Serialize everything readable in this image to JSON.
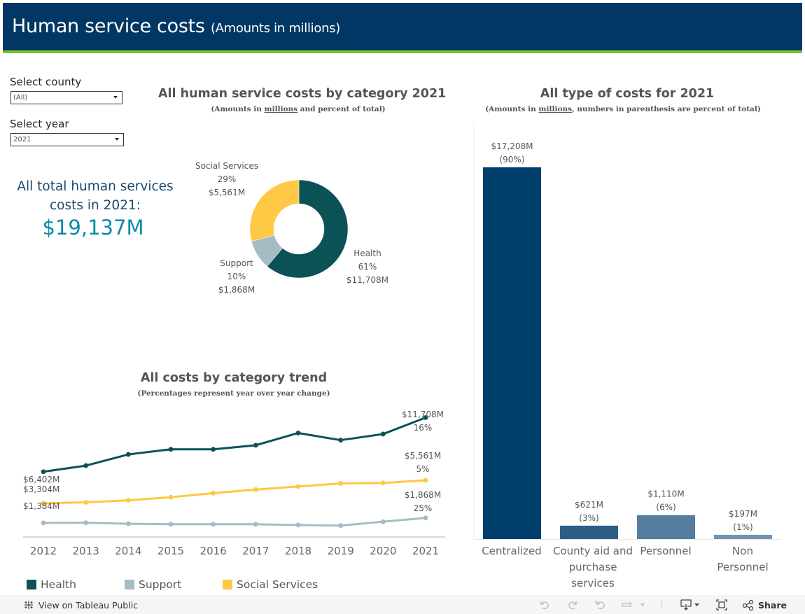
{
  "header": {
    "title": "Human service costs",
    "subtitle": "(Amounts in millions)",
    "bg_color": "#003764",
    "accent_color": "#7bc12a"
  },
  "filters": {
    "county": {
      "label": "Select county",
      "value": "(All)"
    },
    "year": {
      "label": "Select year",
      "value": "2021"
    }
  },
  "kpi": {
    "label": "All total human services costs in 2021:",
    "value": "$19,137M"
  },
  "donut_section": {
    "title": "All human service costs by category 2021",
    "subtitle_pre": "(Amounts in ",
    "subtitle_u": "millions",
    "subtitle_post": " and percent of total)"
  },
  "trend_section": {
    "title": "All costs by category trend",
    "subtitle": "(Percentages represent year over year change)"
  },
  "bar_section": {
    "title": "All type of costs for 2021",
    "subtitle_pre": "(Amounts in ",
    "subtitle_u": "millions",
    "subtitle_post": ", numbers in parenthesis are percent of total)"
  },
  "legend": [
    {
      "label": "Health",
      "color": "#0b5257"
    },
    {
      "label": "Support",
      "color": "#a6bcc4"
    },
    {
      "label": "Social Services",
      "color": "#ffc845"
    }
  ],
  "footer": {
    "view_link": "View on Tableau Public",
    "share_label": "Share",
    "icons": [
      "undo-icon",
      "redo-icon",
      "revert-icon",
      "refresh-icon",
      "download-icon",
      "fullscreen-icon",
      "share-icon"
    ]
  },
  "chart_data": [
    {
      "type": "pie",
      "title": "All human service costs by category 2021",
      "subtitle": "(Amounts in millions and percent of total)",
      "donut": true,
      "slices": [
        {
          "label": "Health",
          "percent": "61%",
          "amount": "$11,708M",
          "value": 11708,
          "color": "#0b5257"
        },
        {
          "label": "Support",
          "percent": "10%",
          "amount": "$1,868M",
          "value": 1868,
          "color": "#a6bcc4"
        },
        {
          "label": "Social Services",
          "percent": "29%",
          "amount": "$5,561M",
          "value": 5561,
          "color": "#ffc845"
        }
      ]
    },
    {
      "type": "line",
      "title": "All costs by category trend",
      "subtitle": "(Percentages represent year over year change)",
      "x": [
        "2012",
        "2013",
        "2014",
        "2015",
        "2016",
        "2017",
        "2018",
        "2019",
        "2020",
        "2021"
      ],
      "ylim": [
        0,
        12500
      ],
      "grid": false,
      "legend": "bottom",
      "series": [
        {
          "name": "Health",
          "color": "#0b5257",
          "values": [
            6402,
            7000,
            8100,
            8600,
            8600,
            9000,
            10200,
            9500,
            10100,
            11708
          ],
          "start_label": "$6,402M",
          "end_label": "$11,708M",
          "end_change": "16%"
        },
        {
          "name": "Social Services",
          "color": "#ffc845",
          "values": [
            3304,
            3400,
            3600,
            3900,
            4300,
            4650,
            4950,
            5250,
            5300,
            5561
          ],
          "start_label": "$3,304M",
          "end_label": "$5,561M",
          "end_change": "5%"
        },
        {
          "name": "Support",
          "color": "#a6bcc4",
          "values": [
            1384,
            1400,
            1300,
            1250,
            1250,
            1250,
            1180,
            1120,
            1500,
            1868
          ],
          "start_label": "$1,384M",
          "end_label": "$1,868M",
          "end_change": "25%"
        }
      ]
    },
    {
      "type": "bar",
      "title": "All type of costs for 2021",
      "subtitle": "(Amounts in millions, numbers in parenthesis are percent of total)",
      "categories": [
        "Centralized",
        "County aid and purchase services",
        "Personnel",
        "Non Personnel"
      ],
      "category_lines": [
        [
          "Centralized"
        ],
        [
          "County aid and",
          "purchase",
          "services"
        ],
        [
          "Personnel"
        ],
        [
          "Non",
          "Personnel"
        ]
      ],
      "values": [
        17208,
        621,
        1110,
        197
      ],
      "amount_labels": [
        "$17,208M",
        "$621M",
        "$1,110M",
        "$197M"
      ],
      "percent_labels": [
        "(90%)",
        "(3%)",
        "(6%)",
        "(1%)"
      ],
      "colors": [
        "#003e6b",
        "#2c5f88",
        "#557da0",
        "#7393b0"
      ],
      "ylim": [
        0,
        17208
      ]
    }
  ]
}
